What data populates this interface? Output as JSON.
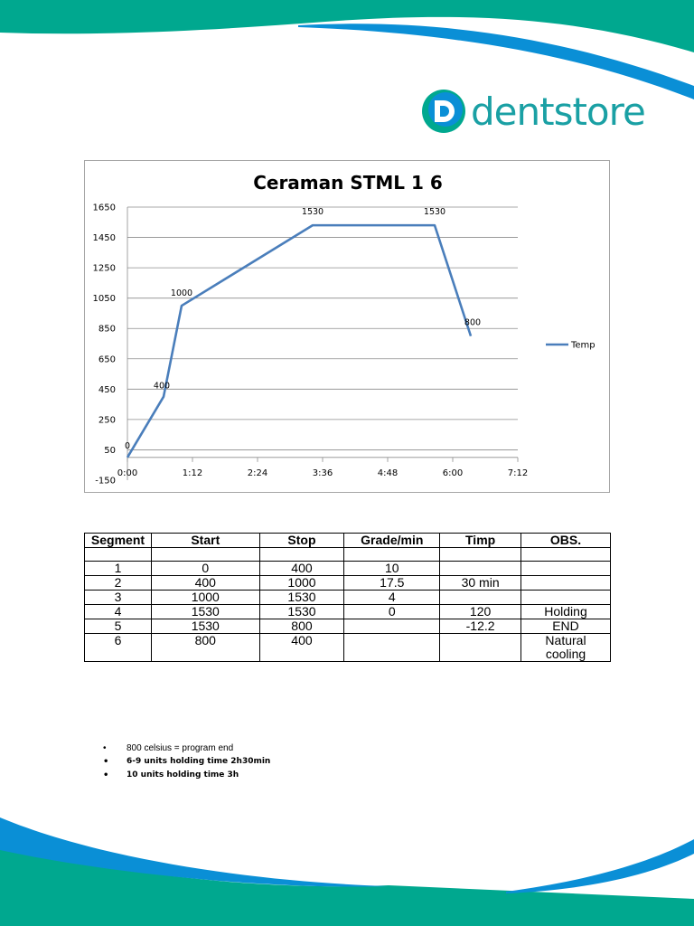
{
  "brand": {
    "name": "dentstore",
    "colors": {
      "teal": "#00a88f",
      "blue": "#0a8fd6",
      "line": "#4a7ebb"
    }
  },
  "chart_data": {
    "type": "line",
    "title": "Ceraman STML  1  6",
    "x": [
      "0:00",
      "0:40",
      "1:00",
      "3:25",
      "5:40",
      "6:20"
    ],
    "x_minutes": [
      0,
      40,
      60,
      205,
      340,
      380
    ],
    "series": [
      {
        "name": "Temp",
        "values": [
          0,
          400,
          1000,
          1530,
          1530,
          800
        ]
      }
    ],
    "data_labels": [
      "0",
      "400",
      "1000",
      "1530",
      "1530",
      "800"
    ],
    "x_ticks": [
      "0:00",
      "1:12",
      "2:24",
      "3:36",
      "4:48",
      "6:00",
      "7:12"
    ],
    "y_ticks": [
      "1650",
      "1450",
      "1250",
      "1050",
      "850",
      "650",
      "450",
      "250",
      "50",
      "-150"
    ],
    "ylim": [
      -150,
      1650
    ],
    "xlim": [
      "0:00",
      "7:12"
    ],
    "grid": "horizontal",
    "legend": "right"
  },
  "table": {
    "headers": [
      "Segment",
      "Start",
      "Stop",
      "Grade/min",
      "Timp",
      "OBS."
    ],
    "rows": [
      [
        "",
        "",
        "",
        "",
        "",
        ""
      ],
      [
        "1",
        "0",
        "400",
        "10",
        "",
        ""
      ],
      [
        "2",
        "400",
        "1000",
        "17.5",
        "30 min",
        ""
      ],
      [
        "3",
        "1000",
        "1530",
        "4",
        "",
        ""
      ],
      [
        "4",
        "1530",
        "1530",
        "0",
        "120",
        "Holding"
      ],
      [
        "5",
        "1530",
        "800",
        "",
        "-12.2",
        "END"
      ],
      [
        "6",
        "800",
        "400",
        "",
        "",
        "Natural cooling"
      ]
    ]
  },
  "notes": [
    "800 celsius = program end",
    "6-9 units holding time 2h30min",
    "10 units holding time 3h"
  ]
}
